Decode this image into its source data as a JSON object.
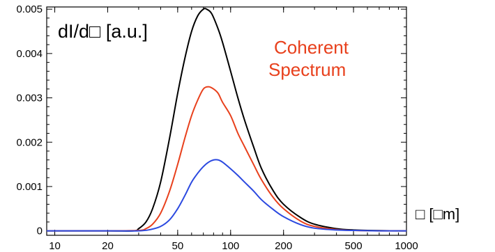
{
  "chart_data": {
    "type": "line",
    "xscale": "log",
    "xlim": [
      9,
      1000
    ],
    "ylim": [
      -0.0001,
      0.00505
    ],
    "xticks": [
      10,
      20,
      50,
      100,
      200,
      500,
      1000
    ],
    "xtick_labels": [
      "10",
      "20",
      "50",
      "100",
      "200",
      "500",
      "1000"
    ],
    "yticks": [
      0,
      0.001,
      0.002,
      0.003,
      0.004,
      0.005
    ],
    "ytick_labels": [
      "0",
      "0.001",
      "0.002",
      "0.003",
      "0.004",
      "0.005"
    ],
    "ylabel": "dI/d□ [a.u.]",
    "xlabel": "□ [□m]",
    "annotation": [
      "Coherent",
      "Spectrum"
    ],
    "grid": false,
    "series": [
      {
        "color": "#000000",
        "x": [
          9,
          20,
          28,
          30,
          33,
          36,
          40,
          45,
          50,
          55,
          60,
          65,
          70,
          73,
          78,
          85,
          90,
          100,
          110,
          120,
          135,
          150,
          175,
          200,
          250,
          300,
          400,
          500,
          700,
          1000
        ],
        "y": [
          0,
          0,
          0,
          5e-05,
          0.0002,
          0.0005,
          0.0011,
          0.0021,
          0.0031,
          0.0039,
          0.0045,
          0.00485,
          0.005,
          0.005,
          0.0049,
          0.00455,
          0.00425,
          0.0036,
          0.003,
          0.0025,
          0.0019,
          0.0014,
          0.0009,
          0.0006,
          0.0003,
          0.00015,
          5e-05,
          2e-05,
          5e-06,
          0
        ]
      },
      {
        "color": "#e8401c",
        "x": [
          9,
          20,
          30,
          33,
          36,
          40,
          45,
          50,
          55,
          60,
          65,
          70,
          75,
          80,
          85,
          90,
          100,
          110,
          120,
          135,
          150,
          175,
          200,
          250,
          300,
          400,
          500,
          700,
          1000
        ],
        "y": [
          0,
          0,
          1e-05,
          5e-05,
          0.00015,
          0.0004,
          0.0009,
          0.0015,
          0.0021,
          0.0026,
          0.00295,
          0.0032,
          0.00325,
          0.0032,
          0.0031,
          0.0029,
          0.0026,
          0.0022,
          0.0019,
          0.0015,
          0.00115,
          0.00075,
          0.0005,
          0.00022,
          0.0001,
          3e-05,
          1e-05,
          0,
          0
        ]
      },
      {
        "color": "#2b49e0",
        "x": [
          9,
          20,
          30,
          35,
          40,
          45,
          50,
          55,
          60,
          65,
          70,
          75,
          80,
          85,
          90,
          100,
          110,
          120,
          135,
          150,
          175,
          200,
          250,
          300,
          400,
          500,
          700,
          1000
        ],
        "y": [
          0,
          0,
          0,
          3e-05,
          0.0001,
          0.00025,
          0.0005,
          0.0008,
          0.0011,
          0.0013,
          0.00145,
          0.00155,
          0.0016,
          0.0016,
          0.00155,
          0.0014,
          0.00125,
          0.0011,
          0.0009,
          0.0007,
          0.00048,
          0.00032,
          0.00014,
          6e-05,
          2e-05,
          1e-05,
          0,
          0
        ]
      }
    ]
  }
}
